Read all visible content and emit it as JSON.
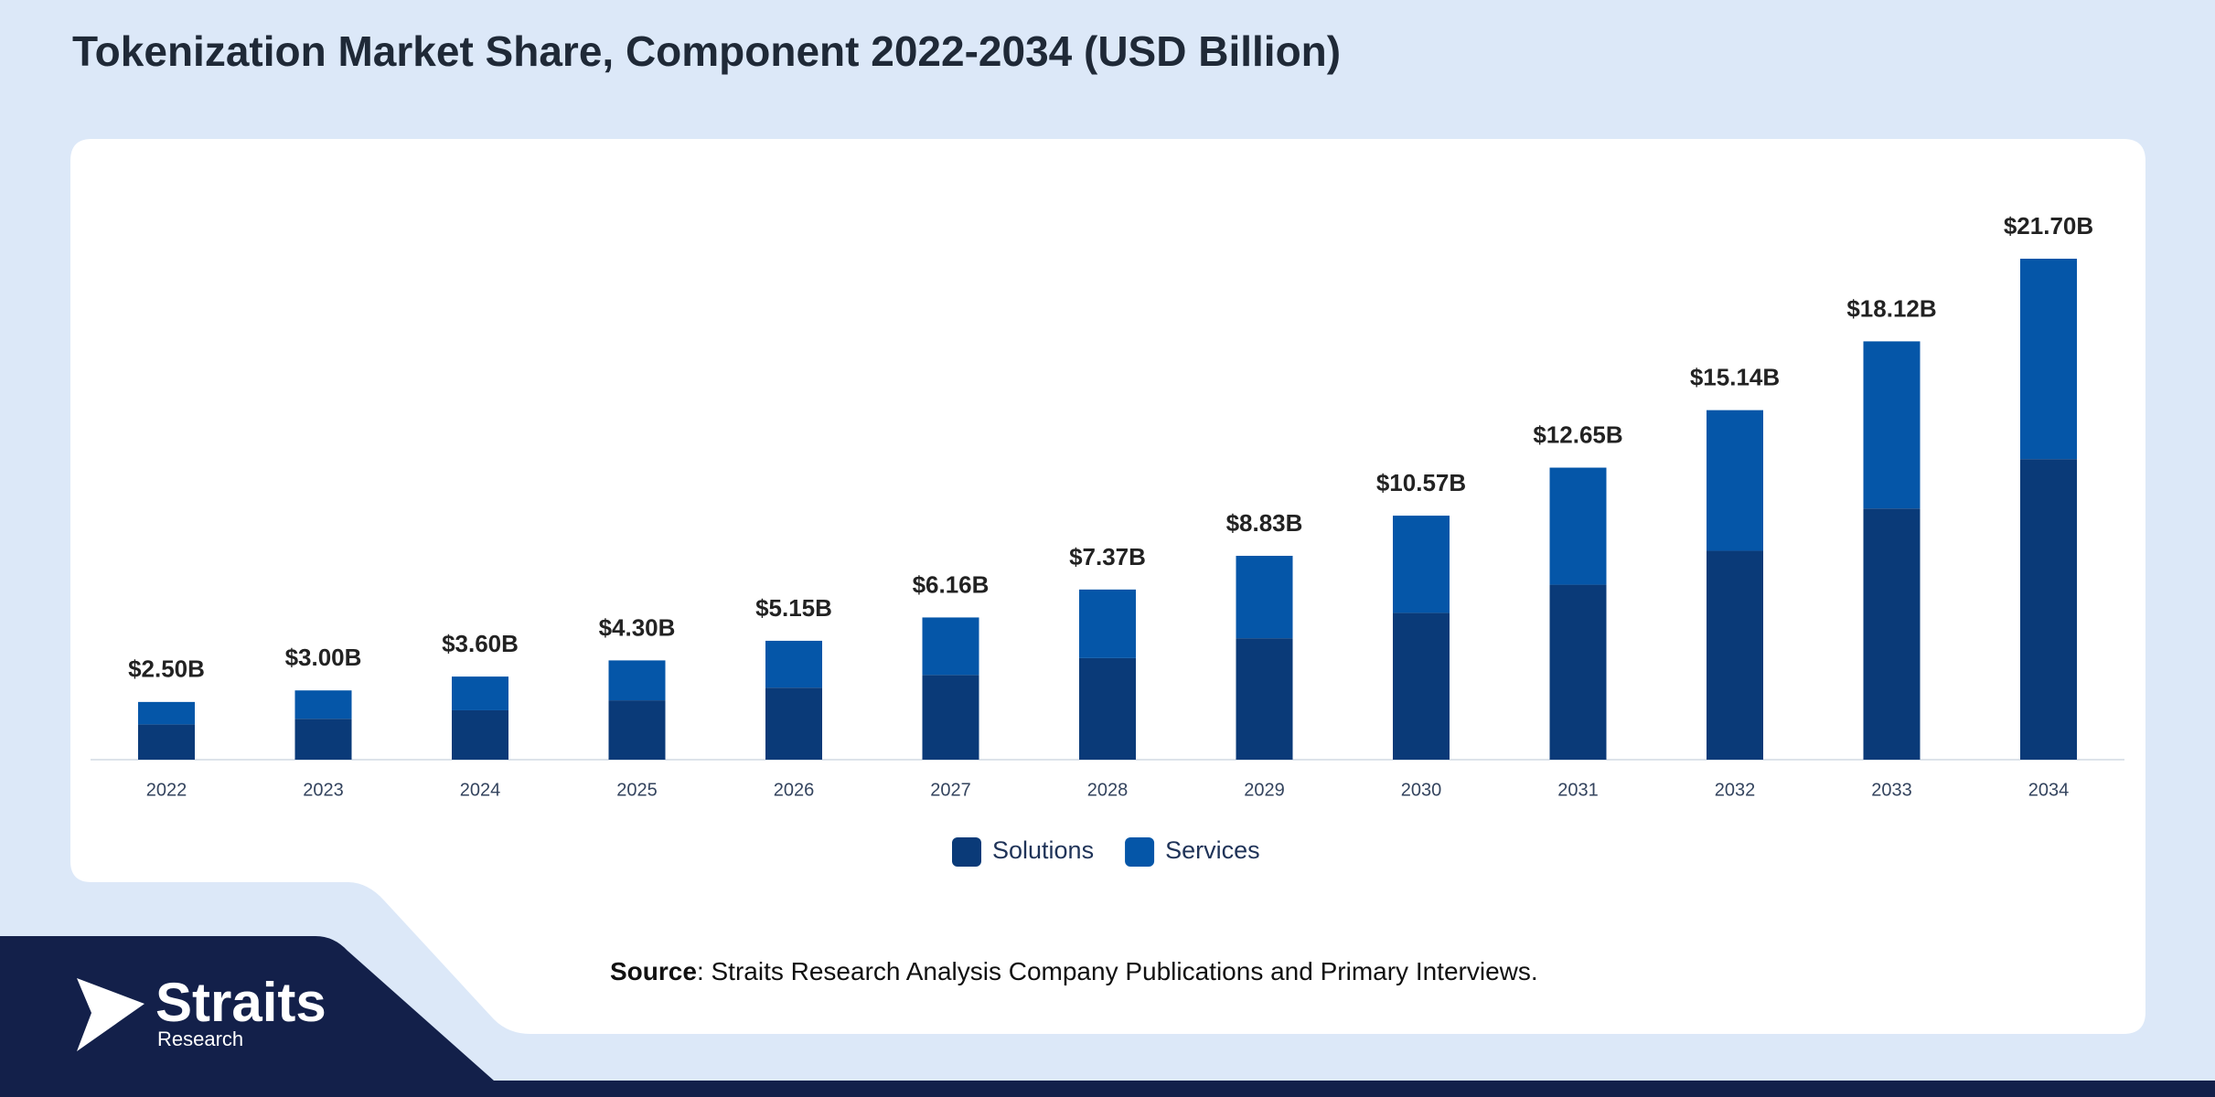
{
  "chart_data": {
    "type": "stacked_bar",
    "title": "Tokenization Market Share, Component 2022-2034 (USD Billion)",
    "categories": [
      "2022",
      "2023",
      "2024",
      "2025",
      "2026",
      "2027",
      "2028",
      "2029",
      "2030",
      "2031",
      "2032",
      "2033",
      "2034"
    ],
    "series": [
      {
        "name": "Solutions",
        "color": "#0a3a78",
        "values": [
          1.53,
          1.77,
          2.14,
          2.57,
          3.12,
          3.67,
          4.4,
          5.26,
          6.36,
          7.58,
          9.05,
          10.88,
          13.02
        ]
      },
      {
        "name": "Services",
        "color": "#0556a8",
        "values": [
          0.97,
          1.23,
          1.46,
          1.73,
          2.03,
          2.49,
          2.97,
          3.57,
          4.21,
          5.07,
          6.09,
          7.24,
          8.68
        ]
      }
    ],
    "totals": {
      "values": [
        2.5,
        3.0,
        3.6,
        4.3,
        5.15,
        6.16,
        7.37,
        8.83,
        10.57,
        12.65,
        15.14,
        18.12,
        21.7
      ],
      "value_labels": [
        "$2.50B",
        "$3.00B",
        "$3.60B",
        "$4.30B",
        "$5.15B",
        "$6.16B",
        "$7.37B",
        "$8.83B",
        "$10.57B",
        "$12.65B",
        "$15.14B",
        "$18.12B",
        "$21.70B"
      ]
    },
    "legend": "bottom"
  },
  "source": {
    "label": "Source",
    "text": ": Straits Research Analysis Company Publications and Primary Interviews."
  },
  "logo": {
    "name": "Straits",
    "tagline": "Research"
  }
}
